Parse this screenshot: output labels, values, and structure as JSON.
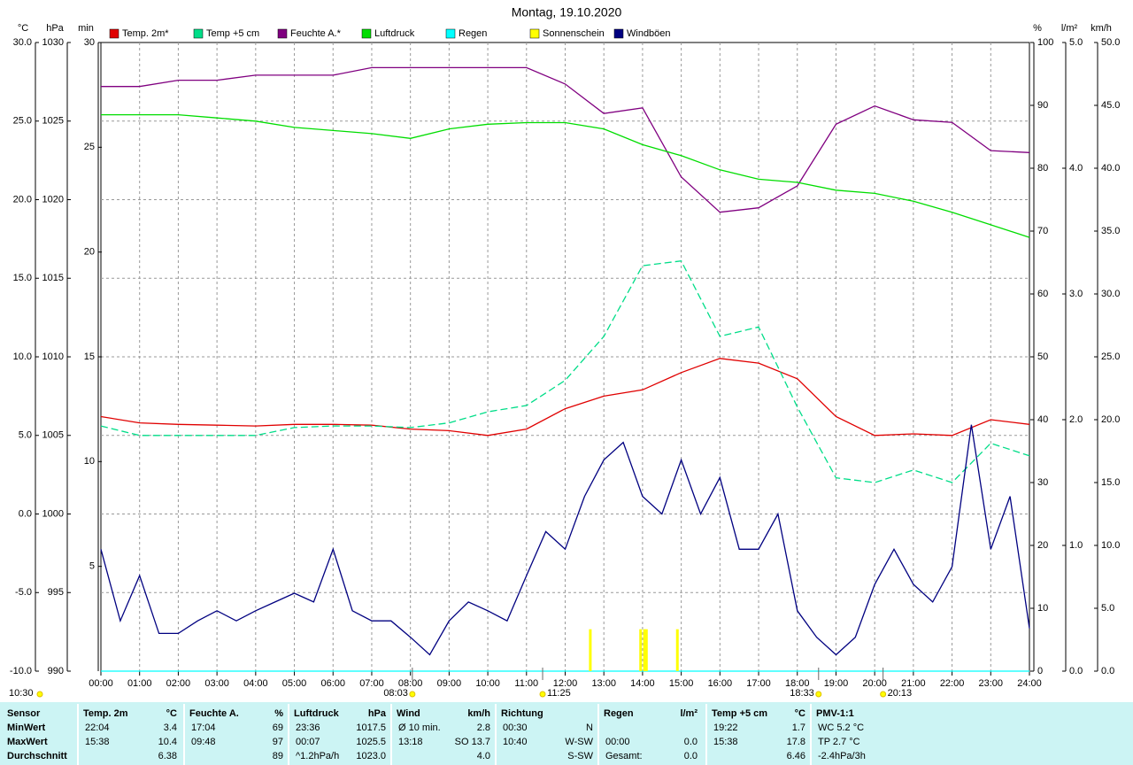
{
  "chart_data": {
    "type": "line",
    "title": "Montag, 19.10.2020",
    "grid": true,
    "x": [
      0,
      1,
      2,
      3,
      4,
      5,
      6,
      7,
      8,
      9,
      10,
      11,
      12,
      13,
      14,
      15,
      16,
      17,
      18,
      19,
      20,
      21,
      22,
      23,
      24
    ],
    "xlim": [
      0,
      24
    ],
    "xticks": [
      {
        "value": 0,
        "label": "00:00"
      },
      {
        "value": 1,
        "label": "01:00"
      },
      {
        "value": 2,
        "label": "02:00"
      },
      {
        "value": 3,
        "label": "03:00"
      },
      {
        "value": 4,
        "label": "04:00"
      },
      {
        "value": 5,
        "label": "05:00"
      },
      {
        "value": 6,
        "label": "06:00"
      },
      {
        "value": 7,
        "label": "07:00"
      },
      {
        "value": 8,
        "label": "08:00"
      },
      {
        "value": 9,
        "label": "09:00"
      },
      {
        "value": 10,
        "label": "10:00"
      },
      {
        "value": 11,
        "label": "11:00"
      },
      {
        "value": 12,
        "label": "12:00"
      },
      {
        "value": 13,
        "label": "13:00"
      },
      {
        "value": 14,
        "label": "14:00"
      },
      {
        "value": 15,
        "label": "15:00"
      },
      {
        "value": 16,
        "label": "16:00"
      },
      {
        "value": 17,
        "label": "17:00"
      },
      {
        "value": 18,
        "label": "18:00"
      },
      {
        "value": 19,
        "label": "19:00"
      },
      {
        "value": 20,
        "label": "20:00"
      },
      {
        "value": 21,
        "label": "21:00"
      },
      {
        "value": 22,
        "label": "22:00"
      },
      {
        "value": 23,
        "label": "23:00"
      },
      {
        "value": 24,
        "label": "24:00"
      }
    ],
    "axes": [
      {
        "label": "°C",
        "color": "#ff0000",
        "lim": [
          -10,
          30
        ],
        "ticks": [
          {
            "value": -10,
            "label": "-10.0"
          },
          {
            "value": -5,
            "label": "-5.0"
          },
          {
            "value": 0,
            "label": "0.0"
          },
          {
            "value": 5,
            "label": "5.0"
          },
          {
            "value": 10,
            "label": "10.0"
          },
          {
            "value": 15,
            "label": "15.0"
          },
          {
            "value": 20,
            "label": "20.0"
          },
          {
            "value": 25,
            "label": "25.0"
          },
          {
            "value": 30,
            "label": "30.0"
          }
        ]
      },
      {
        "label": "hPa",
        "color": "#00c000",
        "lim": [
          990,
          1030
        ],
        "ticks": [
          990,
          995,
          1000,
          1005,
          1010,
          1015,
          1020,
          1025,
          1030
        ]
      },
      {
        "label": "min",
        "color": "#e0e000",
        "lim": [
          0,
          30
        ],
        "ticks": [
          5,
          10,
          15,
          20,
          25,
          30
        ]
      },
      {
        "label": "%",
        "color": "#800080",
        "lim": [
          0,
          100
        ],
        "ticks": [
          0,
          10,
          20,
          30,
          40,
          50,
          60,
          70,
          80,
          90,
          100
        ]
      },
      {
        "label": "l/m²",
        "color": "#00d0d0",
        "lim": [
          0,
          5
        ],
        "ticks": [
          {
            "value": 0,
            "label": "0.0"
          },
          {
            "value": 1,
            "label": "1.0"
          },
          {
            "value": 2,
            "label": "2.0"
          },
          {
            "value": 3,
            "label": "3.0"
          },
          {
            "value": 4,
            "label": "4.0"
          },
          {
            "value": 5,
            "label": "5.0"
          }
        ]
      },
      {
        "label": "km/h",
        "color": "#000080",
        "lim": [
          0,
          50
        ],
        "ticks": [
          {
            "value": 0,
            "label": "0.0"
          },
          {
            "value": 5,
            "label": "5.0"
          },
          {
            "value": 10,
            "label": "10.0"
          },
          {
            "value": 15,
            "label": "15.0"
          },
          {
            "value": 20,
            "label": "20.0"
          },
          {
            "value": 25,
            "label": "25.0"
          },
          {
            "value": 30,
            "label": "30.0"
          },
          {
            "value": 35,
            "label": "35.0"
          },
          {
            "value": 40,
            "label": "40.0"
          },
          {
            "value": 45,
            "label": "45.0"
          },
          {
            "value": 50,
            "label": "50.0"
          }
        ]
      }
    ],
    "series": [
      {
        "name": "Temp. 2m*",
        "color": "#e00000",
        "axis": 0,
        "values": [
          6.2,
          5.8,
          5.7,
          5.65,
          5.6,
          5.7,
          5.7,
          5.65,
          5.4,
          5.3,
          5.0,
          5.4,
          6.7,
          7.5,
          7.9,
          9.0,
          9.9,
          9.6,
          8.6,
          6.2,
          5.0,
          5.1,
          5.0,
          6.0,
          5.7
        ]
      },
      {
        "name": "Temp +5 cm",
        "color": "#00dd88",
        "axis": 0,
        "dash": true,
        "values": [
          5.6,
          5.0,
          5.0,
          5.0,
          5.0,
          5.5,
          5.6,
          5.6,
          5.5,
          5.8,
          6.5,
          6.9,
          8.5,
          11.3,
          15.8,
          16.1,
          11.3,
          11.9,
          6.8,
          2.3,
          2.0,
          2.8,
          2.0,
          4.5,
          3.7
        ]
      },
      {
        "name": "Feuchte A.*",
        "color": "#800080",
        "axis": 3,
        "values": [
          93,
          93,
          94,
          94,
          94.8,
          94.8,
          94.8,
          96,
          96,
          96,
          96,
          96,
          93.4,
          88.7,
          89.6,
          78.6,
          73,
          73.7,
          77.2,
          87,
          89.9,
          87.7,
          87.3,
          82.8,
          82.5
        ]
      },
      {
        "name": "Luftdruck",
        "color": "#00dd00",
        "axis": 1,
        "values": [
          1025.4,
          1025.4,
          1025.4,
          1025.2,
          1025.0,
          1024.6,
          1024.4,
          1024.2,
          1023.9,
          1024.5,
          1024.8,
          1024.9,
          1024.9,
          1024.5,
          1023.5,
          1022.8,
          1021.9,
          1021.3,
          1021.1,
          1020.6,
          1020.4,
          1019.9,
          1019.2,
          1018.4,
          1017.6
        ]
      },
      {
        "name": "Regen",
        "color": "#00ffff",
        "axis": 4,
        "values": [
          0,
          0,
          0,
          0,
          0,
          0,
          0,
          0,
          0,
          0,
          0,
          0,
          0,
          0,
          0,
          0,
          0,
          0,
          0,
          0,
          0,
          0,
          0,
          0,
          0
        ]
      },
      {
        "name": "Sonnenschein",
        "color": "#ffff00",
        "axis": 2,
        "style": "bar",
        "x": [
          12.65,
          13.95,
          14.05,
          14.1,
          14.9
        ],
        "values": [
          2,
          2,
          2,
          2,
          2
        ]
      },
      {
        "name": "Windböen",
        "color": "#000080",
        "axis": 5,
        "x": [
          0,
          0.5,
          1,
          1.5,
          2,
          2.5,
          3,
          3.5,
          4,
          4.5,
          5,
          5.5,
          6,
          6.5,
          7,
          7.5,
          8,
          8.5,
          9,
          9.5,
          10,
          10.5,
          11,
          11.5,
          12,
          12.5,
          13,
          13.5,
          14,
          14.5,
          15,
          15.5,
          16,
          16.5,
          17,
          17.5,
          18,
          18.5,
          19,
          19.5,
          20,
          20.5,
          21,
          21.5,
          22,
          22.5,
          23,
          23.5,
          24
        ],
        "values": [
          9.7,
          4,
          7.6,
          3,
          3,
          4,
          4.8,
          4,
          4.8,
          5.5,
          6.2,
          5.5,
          9.7,
          4.8,
          4,
          4,
          2.7,
          1.3,
          4,
          5.5,
          4.8,
          4,
          7.6,
          11.1,
          9.7,
          13.9,
          16.8,
          18.2,
          13.9,
          12.5,
          16.8,
          12.5,
          15.4,
          9.7,
          9.7,
          12.5,
          4.8,
          2.7,
          1.3,
          2.7,
          6.9,
          9.7,
          6.9,
          5.5,
          8.3,
          19.6,
          9.7,
          13.9,
          3.4
        ]
      }
    ],
    "annotations": [
      {
        "x": 8.05,
        "label": "08:03"
      },
      {
        "x": 11.417,
        "label": "11:25"
      },
      {
        "x": 18.55,
        "label": "18:33"
      },
      {
        "x": 20.217,
        "label": "20:13"
      }
    ],
    "daylight": "10:30"
  },
  "summary": {
    "labels": [
      "Sensor",
      "MinWert",
      "MaxWert",
      "Durchschnitt"
    ],
    "groups": [
      {
        "title": "Temp. 2m",
        "unit": "°C",
        "rows": [
          [
            "22:04",
            "3.4"
          ],
          [
            "15:38",
            "10.4"
          ],
          [
            null,
            "6.38"
          ]
        ]
      },
      {
        "title": "Feuchte A.",
        "unit": "%",
        "rows": [
          [
            "17:04",
            "69"
          ],
          [
            "09:48",
            "97"
          ],
          [
            null,
            "89"
          ]
        ]
      },
      {
        "title": "Luftdruck",
        "unit": "hPa",
        "rows": [
          [
            "23:36",
            "1017.5"
          ],
          [
            "00:07",
            "1025.5"
          ],
          [
            "^1.2hPa/h",
            "1023.0"
          ]
        ]
      },
      {
        "title": "Wind",
        "unit": "km/h",
        "rows": [
          [
            "Ø 10 min.",
            "2.8"
          ],
          [
            "13:18",
            "SO 13.7"
          ],
          [
            null,
            "4.0"
          ]
        ]
      },
      {
        "title": "Richtung",
        "unit": null,
        "rows": [
          [
            "00:30",
            "N"
          ],
          [
            "10:40",
            "W-SW"
          ],
          [
            null,
            "S-SW"
          ]
        ]
      },
      {
        "title": "Regen",
        "unit": "l/m²",
        "rows": [
          [
            null,
            null
          ],
          [
            "00:00",
            "0.0"
          ],
          [
            "Gesamt:",
            "0.0"
          ]
        ]
      },
      {
        "title": "Temp +5 cm",
        "unit": "°C",
        "rows": [
          [
            "19:22",
            "1.7"
          ],
          [
            "15:38",
            "17.8"
          ],
          [
            null,
            "6.46"
          ]
        ]
      },
      {
        "title": "PMV-1:1",
        "unit": null,
        "rows": [
          [
            "WC 5.2 °C",
            null
          ],
          [
            "TP 2.7 °C",
            null
          ],
          [
            "-2.4hPa/3h",
            null
          ]
        ]
      }
    ]
  }
}
